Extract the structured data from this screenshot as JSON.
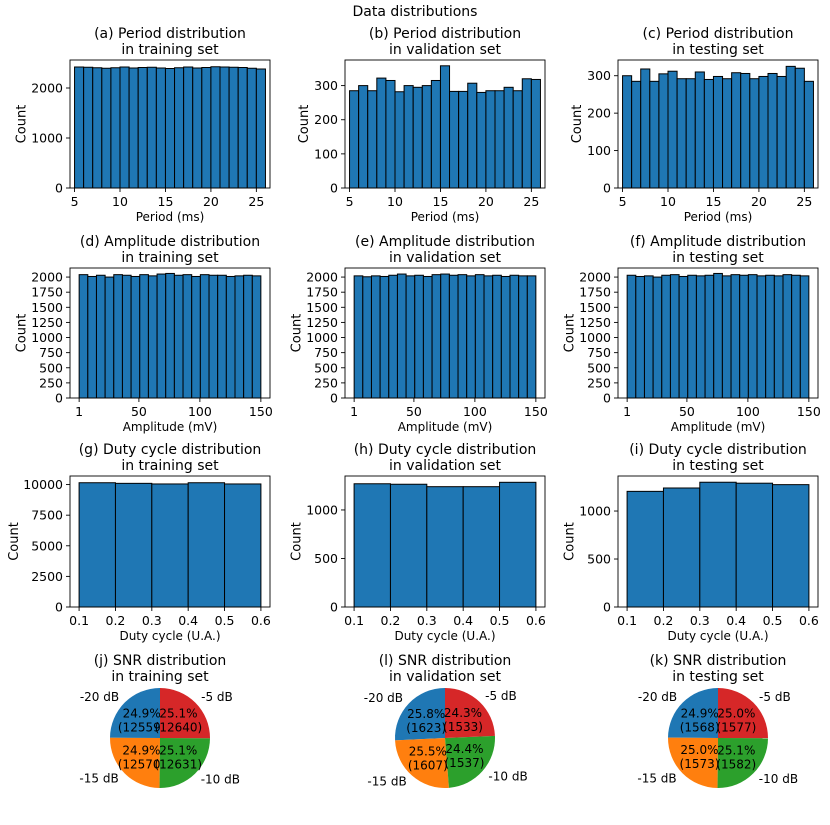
{
  "figure": {
    "suptitle": "Data distributions"
  },
  "colors": {
    "bar": "#1f77b4",
    "edge": "#000000",
    "pie": [
      "#1f77b4",
      "#ff7f0e",
      "#2ca02c",
      "#d62728"
    ]
  },
  "chart_data": [
    {
      "id": "a",
      "type": "bar",
      "title": [
        "(a) Period distribution",
        "in training set"
      ],
      "xlabel": "Period (ms)",
      "ylabel": "Count",
      "bin_edges": [
        5,
        6,
        7,
        8,
        9,
        10,
        11,
        12,
        13,
        14,
        15,
        16,
        17,
        18,
        19,
        20,
        21,
        22,
        23,
        24,
        25,
        26
      ],
      "values": [
        2420,
        2415,
        2405,
        2395,
        2405,
        2420,
        2400,
        2410,
        2415,
        2400,
        2390,
        2405,
        2420,
        2400,
        2410,
        2425,
        2420,
        2415,
        2410,
        2395,
        2380
      ],
      "xlim": [
        4.5,
        26.5
      ],
      "ylim": [
        0,
        2560
      ],
      "xticks": [
        5,
        10,
        15,
        20,
        25
      ],
      "yticks": [
        0,
        1000,
        2000
      ]
    },
    {
      "id": "b",
      "type": "bar",
      "title": [
        "(b) Period distribution",
        "in validation set"
      ],
      "xlabel": "Period (ms)",
      "ylabel": "Count",
      "bin_edges": [
        5,
        6,
        7,
        8,
        9,
        10,
        11,
        12,
        13,
        14,
        15,
        16,
        17,
        18,
        19,
        20,
        21,
        22,
        23,
        24,
        25,
        26
      ],
      "values": [
        285,
        300,
        285,
        322,
        315,
        282,
        300,
        295,
        300,
        315,
        358,
        283,
        283,
        307,
        280,
        285,
        285,
        295,
        285,
        320,
        318
      ],
      "xlim": [
        4.5,
        26.5
      ],
      "ylim": [
        0,
        375
      ],
      "xticks": [
        5,
        10,
        15,
        20,
        25
      ],
      "yticks": [
        0,
        100,
        200,
        300
      ]
    },
    {
      "id": "c",
      "type": "bar",
      "title": [
        "(c) Period distribution",
        "in testing set"
      ],
      "xlabel": "Period (ms)",
      "ylabel": "Count",
      "bin_edges": [
        5,
        6,
        7,
        8,
        9,
        10,
        11,
        12,
        13,
        14,
        15,
        16,
        17,
        18,
        19,
        20,
        21,
        22,
        23,
        24,
        25,
        26
      ],
      "values": [
        300,
        285,
        318,
        285,
        305,
        312,
        292,
        292,
        310,
        290,
        298,
        292,
        308,
        306,
        292,
        298,
        306,
        298,
        325,
        320,
        285
      ],
      "xlim": [
        4.5,
        26.5
      ],
      "ylim": [
        0,
        342
      ],
      "xticks": [
        5,
        10,
        15,
        20,
        25
      ],
      "yticks": [
        0,
        100,
        200,
        300
      ]
    },
    {
      "id": "d",
      "type": "bar",
      "title": [
        "(d) Amplitude distribution",
        "in training set"
      ],
      "xlabel": "Amplitude (mV)",
      "ylabel": "Count",
      "bin_edges": [
        1,
        8.1,
        15.2,
        22.3,
        29.4,
        36.5,
        43.6,
        50.7,
        57.8,
        64.9,
        72,
        79.1,
        86.2,
        93.3,
        100.4,
        107.5,
        114.6,
        121.7,
        128.8,
        135.9,
        143,
        150
      ],
      "values": [
        2040,
        2010,
        2030,
        2000,
        2040,
        2030,
        2010,
        2040,
        2020,
        2050,
        2060,
        2030,
        2040,
        2010,
        2040,
        2030,
        2030,
        2010,
        2020,
        2030,
        2020
      ],
      "xlim": [
        -6.5,
        157.5
      ],
      "ylim": [
        0,
        2150
      ],
      "xticks": [
        1,
        50,
        100,
        150
      ],
      "yticks": [
        0,
        250,
        500,
        750,
        1000,
        1250,
        1500,
        1750,
        2000
      ]
    },
    {
      "id": "e",
      "type": "bar",
      "title": [
        "(e) Amplitude distribution",
        "in validation set"
      ],
      "xlabel": "Amplitude (mV)",
      "ylabel": "Count",
      "bin_edges": [
        1,
        8.1,
        15.2,
        22.3,
        29.4,
        36.5,
        43.6,
        50.7,
        57.8,
        64.9,
        72,
        79.1,
        86.2,
        93.3,
        100.4,
        107.5,
        114.6,
        121.7,
        128.8,
        135.9,
        143,
        150
      ],
      "values": [
        2020,
        2005,
        2020,
        2010,
        2030,
        2050,
        2020,
        2030,
        2010,
        2040,
        2050,
        2030,
        2040,
        2020,
        2040,
        2020,
        2030,
        2010,
        2030,
        2020,
        2020
      ],
      "xlim": [
        -6.5,
        157.5
      ],
      "ylim": [
        0,
        2150
      ],
      "xticks": [
        1,
        50,
        100,
        150
      ],
      "yticks": [
        0,
        250,
        500,
        750,
        1000,
        1250,
        1500,
        1750,
        2000
      ]
    },
    {
      "id": "f",
      "type": "bar",
      "title": [
        "(f) Amplitude distribution",
        "in testing set"
      ],
      "xlabel": "Amplitude (mV)",
      "ylabel": "Count",
      "bin_edges": [
        1,
        8.1,
        15.2,
        22.3,
        29.4,
        36.5,
        43.6,
        50.7,
        57.8,
        64.9,
        72,
        79.1,
        86.2,
        93.3,
        100.4,
        107.5,
        114.6,
        121.7,
        128.8,
        135.9,
        143,
        150
      ],
      "values": [
        2030,
        2010,
        2020,
        2000,
        2030,
        2040,
        2010,
        2030,
        2020,
        2030,
        2060,
        2020,
        2040,
        2030,
        2040,
        2020,
        2030,
        2020,
        2040,
        2030,
        2020
      ],
      "xlim": [
        -6.5,
        157.5
      ],
      "ylim": [
        0,
        2150
      ],
      "xticks": [
        1,
        50,
        100,
        150
      ],
      "yticks": [
        0,
        250,
        500,
        750,
        1000,
        1250,
        1500,
        1750,
        2000
      ]
    },
    {
      "id": "g",
      "type": "bar",
      "title": [
        "(g) Duty cycle distribution",
        "in training set"
      ],
      "xlabel": "Duty cycle (U.A.)",
      "ylabel": "Count",
      "bin_edges": [
        0.1,
        0.2,
        0.3,
        0.4,
        0.5,
        0.6
      ],
      "values": [
        10150,
        10100,
        10050,
        10150,
        10050
      ],
      "xlim": [
        0.075,
        0.625
      ],
      "ylim": [
        0,
        10700
      ],
      "xticks": [
        0.1,
        0.2,
        0.3,
        0.4,
        0.5,
        0.6
      ],
      "yticks": [
        0,
        2500,
        5000,
        7500,
        10000
      ]
    },
    {
      "id": "h",
      "type": "bar",
      "title": [
        "(h) Duty cycle distribution",
        "in validation set"
      ],
      "xlabel": "Duty cycle (U.A.)",
      "ylabel": "Count",
      "bin_edges": [
        0.1,
        0.2,
        0.3,
        0.4,
        0.5,
        0.6
      ],
      "values": [
        1270,
        1265,
        1240,
        1240,
        1285
      ],
      "xlim": [
        0.075,
        0.625
      ],
      "ylim": [
        0,
        1350
      ],
      "xticks": [
        0.1,
        0.2,
        0.3,
        0.4,
        0.5,
        0.6
      ],
      "yticks": [
        0,
        500,
        1000
      ]
    },
    {
      "id": "i",
      "type": "bar",
      "title": [
        "(i) Duty cycle distribution",
        "in testing set"
      ],
      "xlabel": "Duty cycle (U.A.)",
      "ylabel": "Count",
      "bin_edges": [
        0.1,
        0.2,
        0.3,
        0.4,
        0.5,
        0.6
      ],
      "values": [
        1205,
        1240,
        1300,
        1290,
        1275
      ],
      "xlim": [
        0.075,
        0.625
      ],
      "ylim": [
        0,
        1365
      ],
      "xticks": [
        0.1,
        0.2,
        0.3,
        0.4,
        0.5,
        0.6
      ],
      "yticks": [
        0,
        500,
        1000
      ]
    },
    {
      "id": "j",
      "type": "pie",
      "title": [
        "(j) SNR distribution",
        "in training set"
      ],
      "labels": [
        "-20 dB",
        "-15 dB",
        "-10 dB",
        "-5 dB"
      ],
      "values": [
        12559,
        12570,
        12631,
        12640
      ],
      "autopct": [
        "24.9%",
        "24.9%",
        "25.1%",
        "25.1%"
      ],
      "count_labels": [
        "(12559)",
        "(12570)",
        "(12631)",
        "(12640)"
      ]
    },
    {
      "id": "l",
      "type": "pie",
      "title": [
        "(l) SNR distribution",
        "in validation set"
      ],
      "labels": [
        "-20 dB",
        "-15 dB",
        "-10 dB",
        "-5 dB"
      ],
      "values": [
        1623,
        1607,
        1537,
        1533
      ],
      "autopct": [
        "25.8%",
        "25.5%",
        "24.4%",
        "24.3%"
      ],
      "count_labels": [
        "(1623)",
        "(1607)",
        "(1537)",
        "(1533)"
      ]
    },
    {
      "id": "k",
      "type": "pie",
      "title": [
        "(k) SNR distribution",
        "in testing set"
      ],
      "labels": [
        "-20 dB",
        "-15 dB",
        "-10 dB",
        "-5 dB"
      ],
      "values": [
        1568,
        1573,
        1582,
        1577
      ],
      "autopct": [
        "24.9%",
        "25.0%",
        "25.1%",
        "25.0%"
      ],
      "count_labels": [
        "(1568)",
        "(1573)",
        "(1582)",
        "(1577)"
      ]
    }
  ]
}
